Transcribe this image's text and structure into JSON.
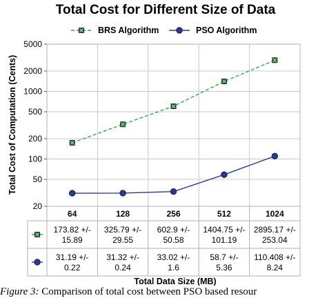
{
  "chart_data": {
    "type": "line",
    "title": "Total Cost for Different Size of Data",
    "xlabel": "Total Data Size (MB)",
    "ylabel": "Total Cost of Computation (Cents)",
    "yscale": "log",
    "ylim": [
      20,
      5000
    ],
    "yticks": [
      "5000",
      "2000",
      "1000",
      "500",
      "200",
      "100",
      "50",
      "20"
    ],
    "ytick_values": [
      5000,
      2000,
      1000,
      500,
      200,
      100,
      50,
      20
    ],
    "categories": [
      "64",
      "128",
      "256",
      "512",
      "1024"
    ],
    "legend_position": "top",
    "series": [
      {
        "name": "BRS Algorithm",
        "color": "#2fa84a",
        "marker": "x-square",
        "line_style": "dashed",
        "values": [
          173.82,
          325.79,
          602.9,
          1404.75,
          2895.17
        ],
        "errors": [
          15.89,
          29.55,
          50.58,
          101.19,
          253.04
        ],
        "table_cells": [
          [
            "173.82 +/-",
            "15.89"
          ],
          [
            "325.79 +/-",
            "29.55"
          ],
          [
            "602.9 +/-",
            "50.58"
          ],
          [
            "1404.75 +/-",
            "101.19"
          ],
          [
            "2895.17 +/-",
            "253.04"
          ]
        ]
      },
      {
        "name": "PSO Algorithm",
        "color": "#2b3a8c",
        "marker": "circle",
        "line_style": "solid",
        "values": [
          31.19,
          31.32,
          33.02,
          58.7,
          110.408
        ],
        "errors": [
          0.22,
          0.24,
          1.6,
          5.36,
          8.24
        ],
        "table_cells": [
          [
            "31.19 +/-",
            "0.22"
          ],
          [
            "31.32 +/-",
            "0.24"
          ],
          [
            "33.02 +/-",
            "1.6"
          ],
          [
            "58.7 +/-",
            "5.36"
          ],
          [
            "110.408 +/-",
            "8.24"
          ]
        ]
      }
    ]
  },
  "caption": {
    "label": "Figure 3:",
    "text": " Comparison of total cost between PSO based resour"
  }
}
